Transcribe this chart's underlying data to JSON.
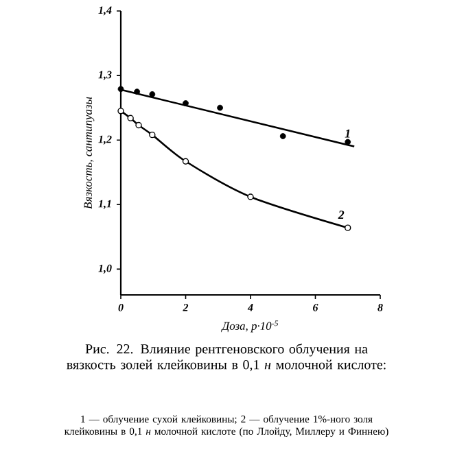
{
  "chart_data": {
    "type": "line",
    "title": "Рис. 22. Влияние рентгеновского облучения на вязкость золей клейковины в 0,1 *н* молочной кислоте:",
    "annotations": [
      "1 — облучение сухой клейковины; 2 — облучение 1%-ного золя клейковины в 0,1 *н* молочной кислоте (по Ллойду, Миллеру и Финнею)"
    ],
    "xlabel": "Доза, р·10$^{-5}$",
    "ylabel": "Вязкость, сантипуазы",
    "xlim": [
      0,
      8
    ],
    "xticks": [
      0,
      2,
      4,
      6,
      8
    ],
    "ylim": [
      0.96,
      1.4
    ],
    "yticks": [
      {
        "value": 1.0,
        "label": "1,0"
      },
      {
        "value": 1.1,
        "label": "1,1"
      },
      {
        "value": 1.2,
        "label": "1,2"
      },
      {
        "value": 1.3,
        "label": "1,3"
      },
      {
        "value": 1.4,
        "label": "1,4"
      }
    ],
    "grid": false,
    "series": [
      {
        "name": "1",
        "type": "line",
        "marker": "none",
        "color": "#000000",
        "x": [
          0,
          7.2
        ],
        "values": [
          1.278,
          1.19
        ]
      },
      {
        "type": "scatter",
        "marker": "circle",
        "color": "#000000",
        "x": [
          0,
          0.5,
          0.97,
          2.0,
          3.06,
          5.0,
          7.0
        ],
        "values": [
          1.279,
          1.275,
          1.271,
          1.257,
          1.25,
          1.206,
          1.197
        ]
      },
      {
        "name": "2",
        "marker": "circle",
        "color": "#000000",
        "x": [
          0,
          0.3,
          0.55,
          0.97,
          2.0,
          4.0,
          7.0
        ],
        "values": [
          1.245,
          1.234,
          1.223,
          1.208,
          1.167,
          1.112,
          1.064
        ]
      }
    ]
  }
}
